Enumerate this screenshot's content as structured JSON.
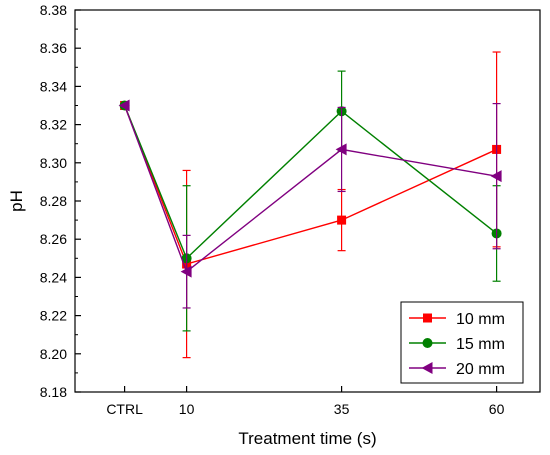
{
  "chart_data": {
    "type": "line",
    "xlabel": "Treatment time (s)",
    "ylabel": "pH",
    "categories": [
      "CTRL",
      "10",
      "35",
      "60"
    ],
    "x_positions": [
      0,
      10,
      35,
      60
    ],
    "xlim": [
      -8,
      67
    ],
    "ylim": [
      8.18,
      8.38
    ],
    "yticks": [
      "8.18",
      "8.20",
      "8.22",
      "8.24",
      "8.26",
      "8.28",
      "8.30",
      "8.32",
      "8.34",
      "8.36",
      "8.38"
    ],
    "grid": false,
    "legend_position": "bottom-right",
    "series": [
      {
        "name": "10 mm",
        "color": "#ff0000",
        "marker": "square",
        "values": [
          8.33,
          8.247,
          8.27,
          8.307
        ],
        "errors": [
          0,
          0.049,
          0.016,
          0.051
        ]
      },
      {
        "name": "15 mm",
        "color": "#008000",
        "marker": "circle",
        "values": [
          8.33,
          8.25,
          8.327,
          8.263
        ],
        "errors": [
          0,
          0.038,
          0.021,
          0.025
        ]
      },
      {
        "name": "20 mm",
        "color": "#800080",
        "marker": "triangle-left",
        "values": [
          8.33,
          8.243,
          8.307,
          8.293
        ],
        "errors": [
          0,
          0.019,
          0.022,
          0.038
        ]
      }
    ]
  }
}
